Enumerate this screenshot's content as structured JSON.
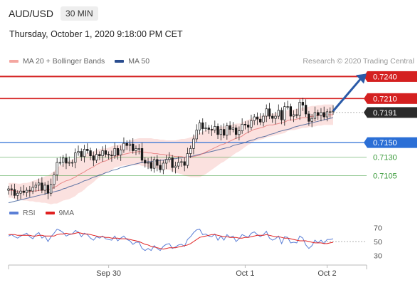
{
  "header": {
    "symbol": "AUD/USD",
    "interval": "30 MIN",
    "datetime": "Thursday, October 1, 2020 9:18:00 PM CET"
  },
  "legend_main": [
    {
      "label": "MA 20 + Bollinger Bands",
      "color": "#f28b82"
    },
    {
      "label": "MA 50",
      "color": "#2a4d8f"
    }
  ],
  "legend_rsi": [
    {
      "label": "RSI",
      "color": "#5b7fd6"
    },
    {
      "label": "9MA",
      "color": "#e02020"
    }
  ],
  "credit": "Research © 2020 Trading Central",
  "chart_data": [
    {
      "type": "candlestick",
      "pair": "AUD/USD",
      "timeframe": "30 MIN",
      "ylim": [
        0.7055,
        0.7254
      ],
      "x_labels": [
        "Sep 30",
        "Oct 1",
        "Oct 2"
      ],
      "last_price": "0.7191",
      "levels": [
        {
          "value": 0.724,
          "label": "0.7240",
          "color": "#d42020",
          "style": "resistance-thick",
          "label_style": "badge"
        },
        {
          "value": 0.721,
          "label": "0.7210",
          "color": "#d42020",
          "style": "resistance",
          "label_style": "badge"
        },
        {
          "value": 0.7191,
          "label": "0.7191",
          "color": "#333333",
          "style": "dotted-last",
          "label_style": "badge-dark"
        },
        {
          "value": 0.715,
          "label": "0.7150",
          "color": "#2b6fd6",
          "style": "pivot",
          "label_style": "badge-blue"
        },
        {
          "value": 0.713,
          "label": "0.7130",
          "color": "#3a9a3a",
          "style": "support",
          "label_style": "text"
        },
        {
          "value": 0.7105,
          "label": "0.7105",
          "color": "#3a9a3a",
          "style": "support",
          "label_style": "text"
        }
      ],
      "forecast_arrow": {
        "from": 0.7193,
        "to": 0.724,
        "color": "#2a5aa8"
      },
      "close": [
        0.7087,
        0.7086,
        0.7078,
        0.7081,
        0.7084,
        0.7082,
        0.7085,
        0.7084,
        0.7089,
        0.7092,
        0.7095,
        0.7085,
        0.7092,
        0.7081,
        0.7093,
        0.7106,
        0.7123,
        0.7123,
        0.7129,
        0.7122,
        0.7123,
        0.7123,
        0.7136,
        0.7138,
        0.7131,
        0.7141,
        0.7139,
        0.7132,
        0.7126,
        0.7134,
        0.7132,
        0.7139,
        0.7134,
        0.7133,
        0.7132,
        0.7142,
        0.7133,
        0.714,
        0.7149,
        0.7146,
        0.7148,
        0.7139,
        0.7142,
        0.7142,
        0.7126,
        0.7122,
        0.7123,
        0.7115,
        0.7127,
        0.7119,
        0.7113,
        0.7122,
        0.7127,
        0.7129,
        0.7116,
        0.7118,
        0.7123,
        0.7124,
        0.7119,
        0.7135,
        0.7142,
        0.7155,
        0.7167,
        0.7177,
        0.7169,
        0.717,
        0.7168,
        0.7167,
        0.7172,
        0.7161,
        0.7168,
        0.716,
        0.7173,
        0.7168,
        0.717,
        0.7161,
        0.7166,
        0.7175,
        0.7174,
        0.7171,
        0.718,
        0.7185,
        0.7182,
        0.7178,
        0.7186,
        0.7196,
        0.7186,
        0.7183,
        0.7186,
        0.7194,
        0.7181,
        0.7199,
        0.7199,
        0.7186,
        0.7188,
        0.7187,
        0.7205,
        0.7201,
        0.7189,
        0.7179,
        0.7183,
        0.7191,
        0.7187,
        0.7191,
        0.7185,
        0.7192,
        0.7192,
        0.7193
      ],
      "ma20": [
        0.7085,
        0.7085,
        0.7084,
        0.7083,
        0.7083,
        0.7083,
        0.7083,
        0.7083,
        0.7084,
        0.7084,
        0.7085,
        0.7085,
        0.7086,
        0.7086,
        0.7087,
        0.7089,
        0.7091,
        0.7094,
        0.7096,
        0.7098,
        0.7099,
        0.7101,
        0.7103,
        0.7106,
        0.7108,
        0.711,
        0.7113,
        0.7115,
        0.7117,
        0.712,
        0.7122,
        0.7124,
        0.7125,
        0.7127,
        0.7129,
        0.7131,
        0.7132,
        0.7133,
        0.7134,
        0.7135,
        0.7136,
        0.7137,
        0.7137,
        0.7138,
        0.7137,
        0.7137,
        0.7136,
        0.7136,
        0.7135,
        0.7135,
        0.7134,
        0.7134,
        0.7133,
        0.7133,
        0.7132,
        0.7131,
        0.7131,
        0.7131,
        0.713,
        0.713,
        0.713,
        0.7131,
        0.7132,
        0.7133,
        0.7135,
        0.7137,
        0.7139,
        0.7141,
        0.7143,
        0.7145,
        0.7147,
        0.7148,
        0.715,
        0.7152,
        0.7154,
        0.7156,
        0.7157,
        0.7159,
        0.7162,
        0.7164,
        0.7166,
        0.7168,
        0.7169,
        0.717,
        0.7171,
        0.7173,
        0.7174,
        0.7174,
        0.7175,
        0.7176,
        0.7177,
        0.7178,
        0.718,
        0.7181,
        0.7181,
        0.7182,
        0.7183,
        0.7184,
        0.7184,
        0.7185,
        0.7186,
        0.7186,
        0.7187,
        0.7187,
        0.7188,
        0.7188,
        0.7188,
        0.7188
      ],
      "ma50": [
        0.7068,
        0.7069,
        0.707,
        0.7071,
        0.7072,
        0.7073,
        0.7074,
        0.7075,
        0.7076,
        0.7077,
        0.7078,
        0.7079,
        0.708,
        0.7081,
        0.7082,
        0.7083,
        0.7084,
        0.7085,
        0.7087,
        0.7088,
        0.709,
        0.7091,
        0.7093,
        0.7094,
        0.7096,
        0.7098,
        0.7099,
        0.7101,
        0.7103,
        0.7104,
        0.7106,
        0.7107,
        0.7109,
        0.711,
        0.7112,
        0.7113,
        0.7114,
        0.7116,
        0.7117,
        0.7118,
        0.7119,
        0.712,
        0.7121,
        0.7122,
        0.7123,
        0.7123,
        0.7124,
        0.7124,
        0.7125,
        0.7125,
        0.7126,
        0.7126,
        0.7127,
        0.7127,
        0.7128,
        0.7128,
        0.7129,
        0.7129,
        0.713,
        0.7131,
        0.7131,
        0.7132,
        0.7133,
        0.7134,
        0.7135,
        0.7136,
        0.7137,
        0.7138,
        0.7139,
        0.714,
        0.7141,
        0.7142,
        0.7143,
        0.7144,
        0.7146,
        0.7147,
        0.7148,
        0.7149,
        0.715,
        0.7152,
        0.7153,
        0.7154,
        0.7156,
        0.7157,
        0.7158,
        0.7159,
        0.7161,
        0.7162,
        0.7163,
        0.7165,
        0.7166,
        0.7167,
        0.7168,
        0.7169,
        0.7171,
        0.7172,
        0.7173,
        0.7174,
        0.7175,
        0.7176,
        0.7177,
        0.7178,
        0.7179,
        0.718,
        0.7181,
        0.7182,
        0.7183,
        0.7184
      ],
      "bb_width": [
        0.001,
        0.001,
        0.0011,
        0.0011,
        0.0011,
        0.0012,
        0.0012,
        0.0013,
        0.0014,
        0.0015,
        0.0016,
        0.0017,
        0.0018,
        0.0019,
        0.0021,
        0.0022,
        0.0024,
        0.0025,
        0.0025,
        0.0026,
        0.0026,
        0.0026,
        0.0026,
        0.0025,
        0.0025,
        0.0024,
        0.0023,
        0.0022,
        0.0021,
        0.002,
        0.0019,
        0.0018,
        0.0017,
        0.0016,
        0.0016,
        0.0015,
        0.0015,
        0.0015,
        0.0015,
        0.0016,
        0.0016,
        0.0017,
        0.0018,
        0.0018,
        0.0019,
        0.0019,
        0.002,
        0.002,
        0.002,
        0.002,
        0.002,
        0.002,
        0.002,
        0.002,
        0.0021,
        0.0022,
        0.0023,
        0.0024,
        0.0025,
        0.0026,
        0.0027,
        0.0028,
        0.0029,
        0.003,
        0.003,
        0.003,
        0.0029,
        0.0028,
        0.0027,
        0.0026,
        0.0025,
        0.0024,
        0.0023,
        0.0022,
        0.0021,
        0.002,
        0.0019,
        0.0018,
        0.0018,
        0.0017,
        0.0017,
        0.0016,
        0.0016,
        0.0016,
        0.0016,
        0.0016,
        0.0016,
        0.0015,
        0.0015,
        0.0015,
        0.0015,
        0.0015,
        0.0014,
        0.0014,
        0.0014,
        0.0014,
        0.0014,
        0.0014,
        0.0014,
        0.0014,
        0.0014,
        0.0014,
        0.0014,
        0.0014,
        0.0014,
        0.0014,
        0.0014,
        0.0014
      ]
    },
    {
      "type": "line",
      "indicator": "RSI",
      "ylim": [
        20,
        80
      ],
      "y_ticks": [
        70,
        50,
        30
      ],
      "rsi": [
        58,
        60,
        57,
        55,
        58,
        60,
        62,
        57,
        54,
        60,
        63,
        55,
        58,
        50,
        57,
        62,
        68,
        66,
        63,
        58,
        60,
        61,
        66,
        64,
        57,
        62,
        60,
        55,
        52,
        57,
        55,
        58,
        54,
        53,
        52,
        58,
        51,
        55,
        58,
        53,
        51,
        46,
        49,
        49,
        40,
        37,
        40,
        37,
        44,
        40,
        37,
        43,
        46,
        47,
        40,
        42,
        45,
        46,
        43,
        53,
        57,
        63,
        67,
        68,
        60,
        61,
        58,
        57,
        61,
        52,
        58,
        52,
        60,
        56,
        58,
        50,
        54,
        60,
        58,
        56,
        62,
        64,
        60,
        57,
        60,
        65,
        55,
        52,
        54,
        58,
        47,
        57,
        56,
        48,
        49,
        48,
        58,
        55,
        45,
        40,
        44,
        52,
        48,
        52,
        47,
        53,
        53,
        54
      ],
      "ma9": [
        60,
        60,
        60,
        59,
        59,
        59,
        59,
        59,
        58,
        58,
        59,
        59,
        58,
        58,
        58,
        58,
        60,
        61,
        61,
        62,
        61,
        61,
        62,
        63,
        62,
        61,
        61,
        60,
        59,
        58,
        57,
        57,
        56,
        56,
        55,
        55,
        55,
        54,
        54,
        54,
        53,
        52,
        51,
        50,
        48,
        46,
        45,
        43,
        42,
        41,
        40,
        39,
        40,
        41,
        41,
        41,
        42,
        43,
        44,
        45,
        47,
        50,
        53,
        56,
        57,
        58,
        59,
        60,
        60,
        59,
        58,
        57,
        57,
        56,
        56,
        56,
        55,
        55,
        56,
        56,
        57,
        58,
        59,
        59,
        59,
        60,
        59,
        58,
        57,
        57,
        56,
        55,
        55,
        54,
        53,
        52,
        51,
        51,
        51,
        50,
        49,
        48,
        48,
        48,
        47,
        47,
        48,
        49
      ]
    }
  ]
}
